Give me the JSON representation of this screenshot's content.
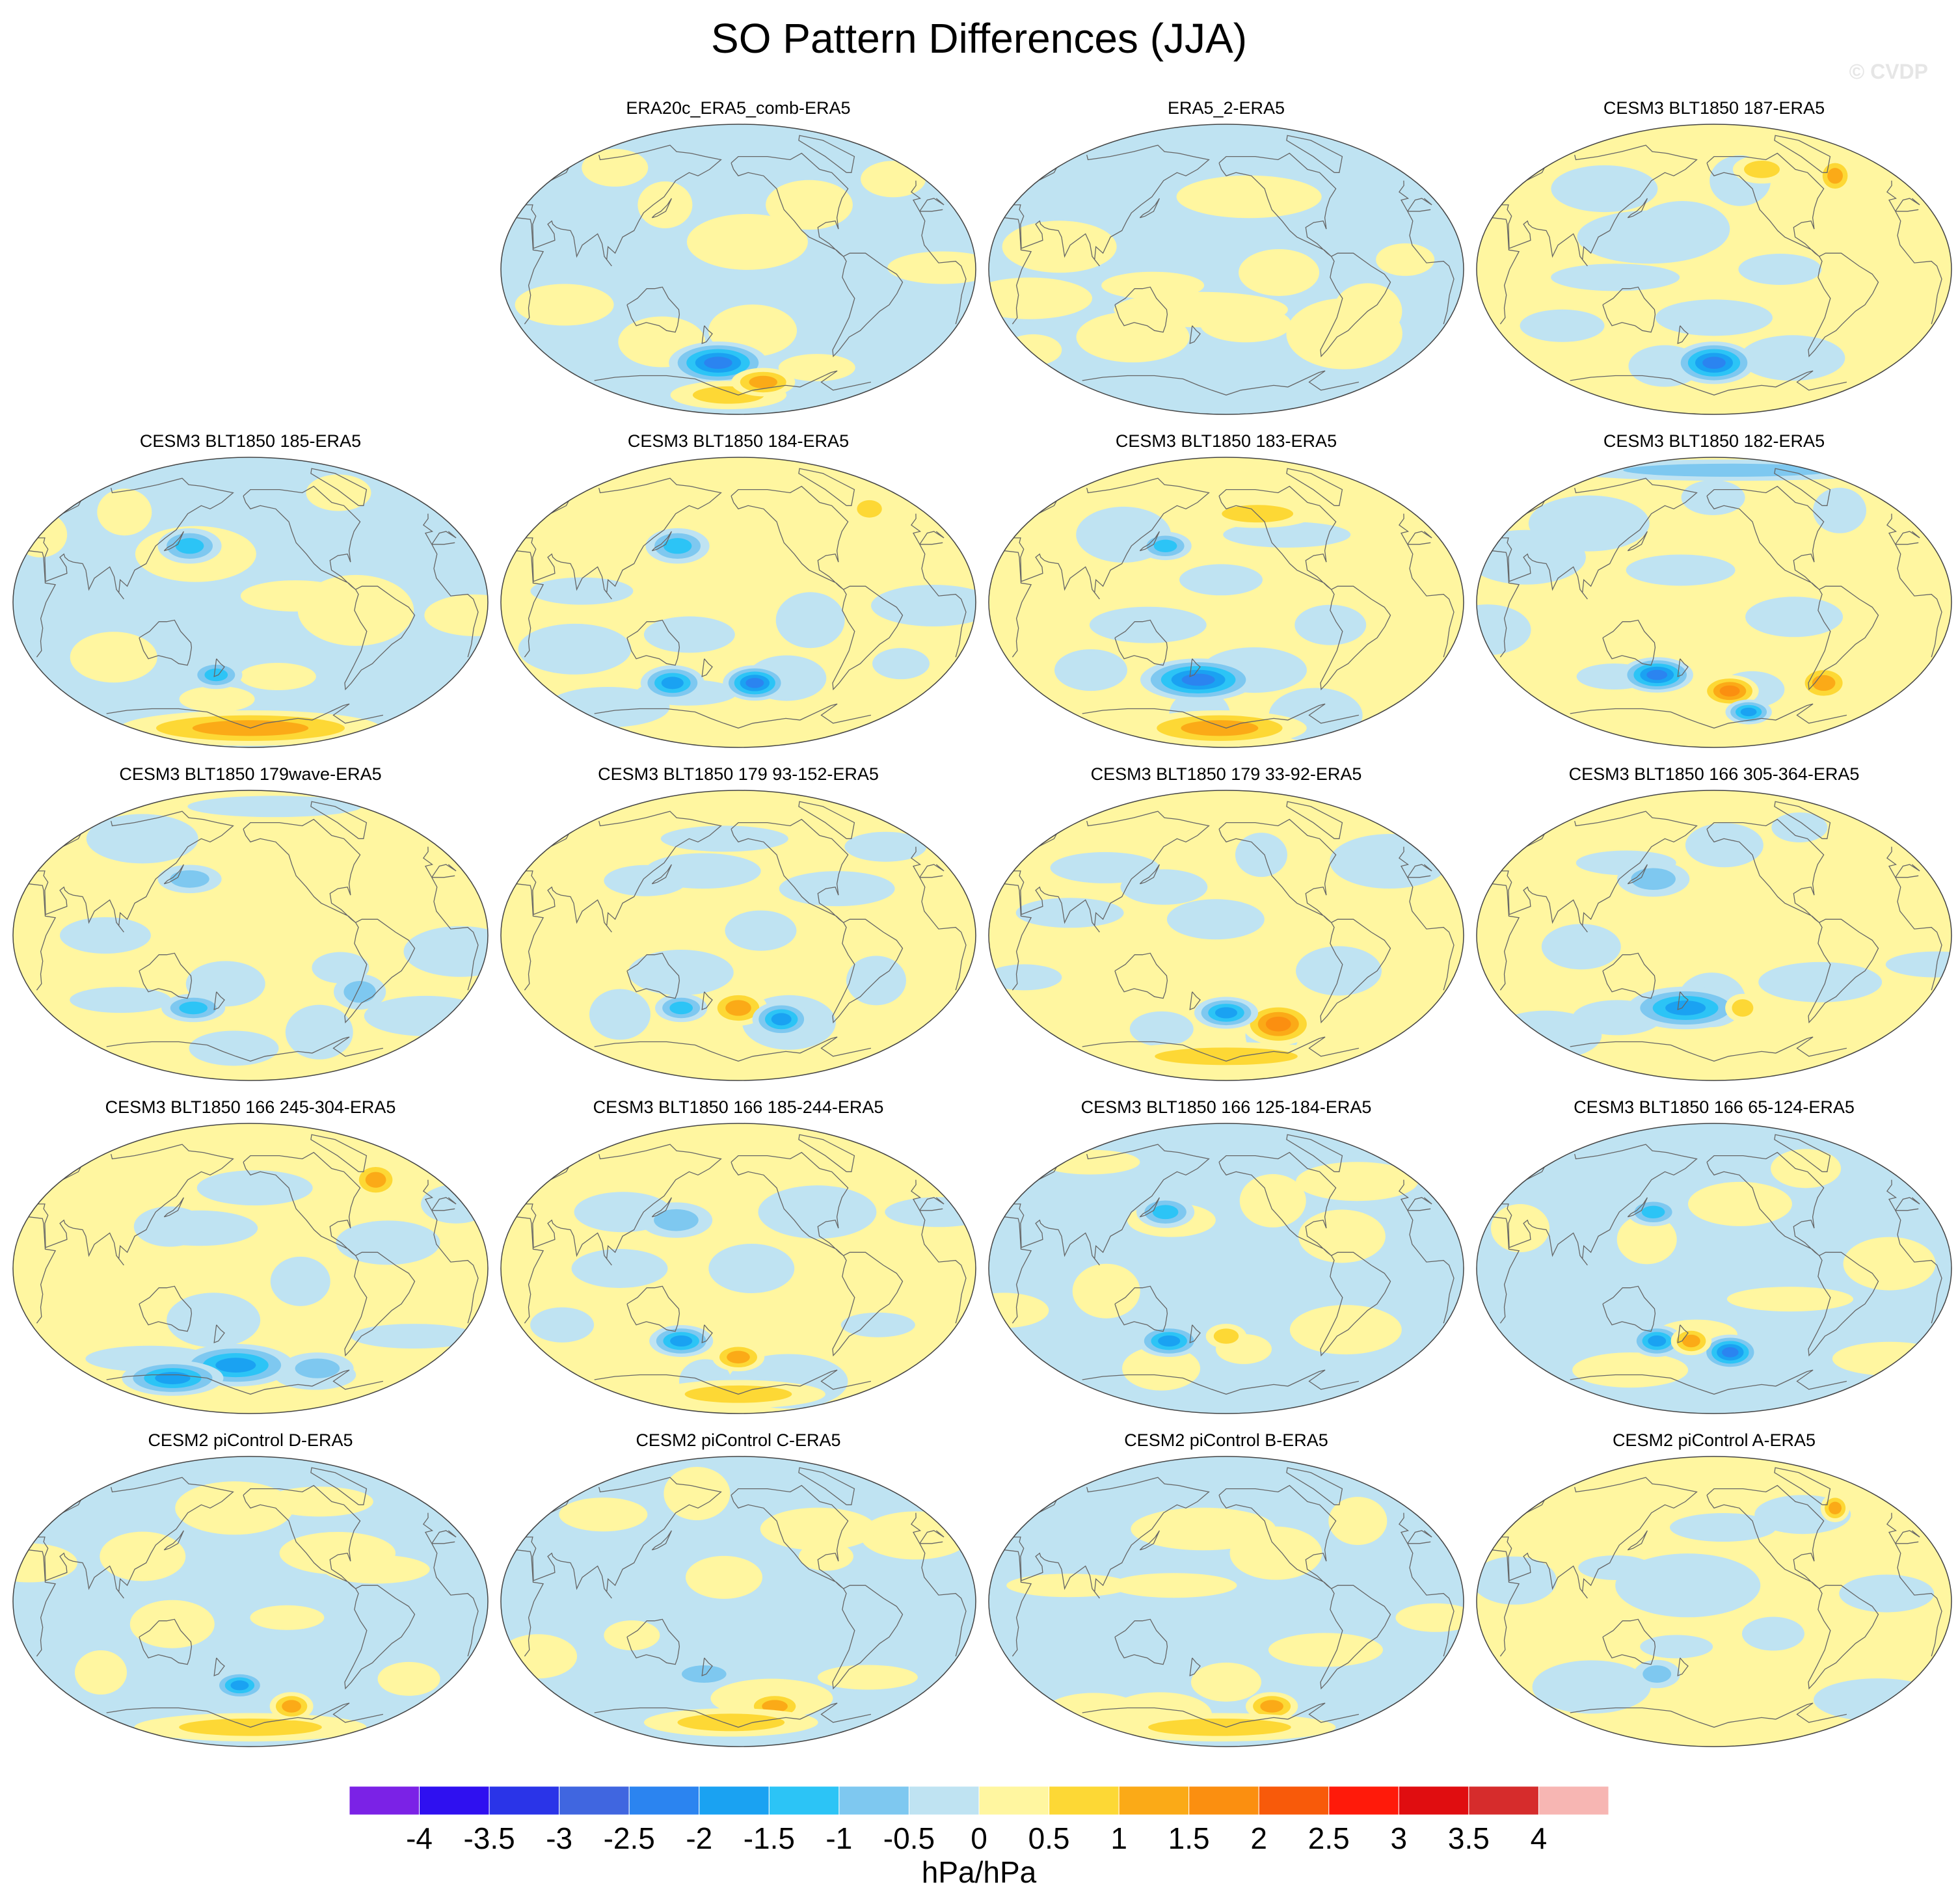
{
  "title": "SO Pattern Differences (JJA)",
  "watermark": "© CVDP",
  "colorbar": {
    "labels": [
      "-4",
      "-3.5",
      "-3",
      "-2.5",
      "-2",
      "-1.5",
      "-1",
      "-0.5",
      "0",
      "0.5",
      "1",
      "1.5",
      "2",
      "2.5",
      "3",
      "3.5",
      "4"
    ],
    "colors": [
      "#7b22e6",
      "#2f10f0",
      "#2a34e8",
      "#4066e0",
      "#2b84f0",
      "#1aa2f2",
      "#2cc4f6",
      "#7ec8f0",
      "#bfe3f2",
      "#fff6a0",
      "#fdd835",
      "#fbaa17",
      "#fb8f10",
      "#f85a0a",
      "#ff1a0a",
      "#e00d10",
      "#d62c2c",
      "#f7b6b3"
    ],
    "units": "hPa/hPa"
  },
  "chart_data": {
    "type": "contour-map-grid",
    "title": "SO Pattern Differences (JJA)",
    "units": "hPa/hPa",
    "contour_levels": [
      -4,
      -3.5,
      -3,
      -2.5,
      -2,
      -1.5,
      -1,
      -0.5,
      0,
      0.5,
      1,
      1.5,
      2,
      2.5,
      3,
      3.5,
      4
    ],
    "panels": [
      {
        "title": "ERA20c_ERA5_comb-ERA5",
        "row": 0,
        "col": 1,
        "base": "blue",
        "features": [
          {
            "lon": 180,
            "lat": -58,
            "value": -2.5,
            "rlon": 34,
            "rlat": 12
          },
          {
            "lon": 185,
            "lat": -78,
            "value": 1.0,
            "rlon": 40,
            "rlat": 8
          },
          {
            "lon": 230,
            "lat": -70,
            "value": 1.5,
            "rlon": 22,
            "rlat": 8
          },
          {
            "lon": 260,
            "lat": 40,
            "value": 0.5,
            "rlon": 30,
            "rlat": 14
          }
        ]
      },
      {
        "title": "ERA5_2-ERA5",
        "row": 0,
        "col": 2,
        "base": "blue",
        "features": [
          {
            "lon": 220,
            "lat": 45,
            "value": 0.5,
            "rlon": 50,
            "rlat": 12
          },
          {
            "lon": 300,
            "lat": -40,
            "value": 0.5,
            "rlon": 40,
            "rlat": 20
          },
          {
            "lon": 180,
            "lat": -25,
            "value": 0.5,
            "rlon": 60,
            "rlat": 10
          }
        ]
      },
      {
        "title": "CESM3 BLT1850 187-ERA5",
        "row": 0,
        "col": 3,
        "base": "yellow",
        "features": [
          {
            "lon": 200,
            "lat": -58,
            "value": -2.5,
            "rlon": 28,
            "rlat": 12
          },
          {
            "lon": 150,
            "lat": 20,
            "value": -0.5,
            "rlon": 50,
            "rlat": 15
          },
          {
            "lon": 250,
            "lat": 62,
            "value": 1.0,
            "rlon": 20,
            "rlat": 8
          },
          {
            "lon": 320,
            "lat": 58,
            "value": 1.5,
            "rlon": 12,
            "rlat": 10
          }
        ]
      },
      {
        "title": "CESM3 BLT1850 185-ERA5",
        "row": 1,
        "col": 0,
        "base": "blue",
        "features": [
          {
            "lon": 150,
            "lat": 35,
            "value": -1.5,
            "rlon": 22,
            "rlat": 10
          },
          {
            "lon": 170,
            "lat": -45,
            "value": -1.5,
            "rlon": 18,
            "rlat": 8
          },
          {
            "lon": 200,
            "lat": -78,
            "value": 1.5,
            "rlon": 90,
            "rlat": 10
          },
          {
            "lon": 280,
            "lat": -5,
            "value": 0.5,
            "rlon": 40,
            "rlat": 20
          }
        ]
      },
      {
        "title": "CESM3 BLT1850 184-ERA5",
        "row": 1,
        "col": 1,
        "base": "yellow",
        "features": [
          {
            "lon": 150,
            "lat": 35,
            "value": -1.5,
            "rlon": 22,
            "rlat": 10
          },
          {
            "lon": 140,
            "lat": -50,
            "value": -2.0,
            "rlon": 22,
            "rlat": 10
          },
          {
            "lon": 215,
            "lat": -50,
            "value": -2.5,
            "rlon": 22,
            "rlat": 10
          },
          {
            "lon": 330,
            "lat": 58,
            "value": 1.0,
            "rlon": 14,
            "rlat": 8
          }
        ]
      },
      {
        "title": "CESM3 BLT1850 183-ERA5",
        "row": 1,
        "col": 2,
        "base": "yellow",
        "features": [
          {
            "lon": 175,
            "lat": -48,
            "value": -2.5,
            "rlon": 40,
            "rlat": 12
          },
          {
            "lon": 150,
            "lat": 35,
            "value": -1.5,
            "rlon": 18,
            "rlat": 8
          },
          {
            "lon": 190,
            "lat": -78,
            "value": 1.5,
            "rlon": 60,
            "rlat": 10
          },
          {
            "lon": 230,
            "lat": 55,
            "value": 1.0,
            "rlon": 40,
            "rlat": 8
          }
        ]
      },
      {
        "title": "CESM3 BLT1850 182-ERA5",
        "row": 1,
        "col": 3,
        "base": "yellow",
        "features": [
          {
            "lon": 150,
            "lat": -45,
            "value": -2.5,
            "rlon": 25,
            "rlat": 10
          },
          {
            "lon": 215,
            "lat": -55,
            "value": 2.0,
            "rlon": 20,
            "rlat": 9
          },
          {
            "lon": 300,
            "lat": -50,
            "value": 1.5,
            "rlon": 18,
            "rlat": 10
          },
          {
            "lon": 240,
            "lat": -68,
            "value": -2.0,
            "rlon": 16,
            "rlat": 7
          },
          {
            "lon": 230,
            "lat": 82,
            "value": -1.0,
            "rlon": 120,
            "rlat": 6
          }
        ]
      },
      {
        "title": "CESM3 BLT1850 179wave-ERA5",
        "row": 2,
        "col": 0,
        "base": "yellow",
        "features": [
          {
            "lon": 150,
            "lat": 35,
            "value": -1.0,
            "rlon": 22,
            "rlat": 8
          },
          {
            "lon": 150,
            "lat": -45,
            "value": -1.5,
            "rlon": 22,
            "rlat": 8
          },
          {
            "lon": 290,
            "lat": -35,
            "value": -1.0,
            "rlon": 18,
            "rlat": 10
          },
          {
            "lon": 240,
            "lat": 80,
            "value": -0.5,
            "rlon": 60,
            "rlat": 6
          }
        ]
      },
      {
        "title": "CESM3 BLT1850 179 93-152-ERA5",
        "row": 2,
        "col": 1,
        "base": "yellow",
        "features": [
          {
            "lon": 200,
            "lat": -45,
            "value": 1.5,
            "rlon": 20,
            "rlat": 10
          },
          {
            "lon": 240,
            "lat": -52,
            "value": -2.0,
            "rlon": 20,
            "rlat": 10
          },
          {
            "lon": 150,
            "lat": -45,
            "value": -1.5,
            "rlon": 18,
            "rlat": 8
          },
          {
            "lon": 170,
            "lat": 40,
            "value": -0.5,
            "rlon": 40,
            "rlat": 10
          }
        ]
      },
      {
        "title": "CESM3 BLT1850 179 33-92-ERA5",
        "row": 2,
        "col": 2,
        "base": "yellow",
        "features": [
          {
            "lon": 250,
            "lat": -55,
            "value": 2.0,
            "rlon": 25,
            "rlat": 12
          },
          {
            "lon": 200,
            "lat": -48,
            "value": -2.0,
            "rlon": 22,
            "rlat": 9
          },
          {
            "lon": 200,
            "lat": -75,
            "value": 1.0,
            "rlon": 80,
            "rlat": 8
          },
          {
            "lon": 150,
            "lat": 30,
            "value": -0.5,
            "rlon": 30,
            "rlat": 10
          }
        ]
      },
      {
        "title": "CESM3 BLT1850 166 305-364-ERA5",
        "row": 2,
        "col": 3,
        "base": "yellow",
        "features": [
          {
            "lon": 175,
            "lat": -45,
            "value": -2.0,
            "rlon": 40,
            "rlat": 12
          },
          {
            "lon": 150,
            "lat": 35,
            "value": -1.0,
            "rlon": 25,
            "rlat": 10
          },
          {
            "lon": 225,
            "lat": -45,
            "value": 1.0,
            "rlon": 12,
            "rlat": 8
          }
        ]
      },
      {
        "title": "CESM3 BLT1850 166 245-304-ERA5",
        "row": 3,
        "col": 0,
        "base": "yellow",
        "features": [
          {
            "lon": 185,
            "lat": -60,
            "value": -2.0,
            "rlon": 40,
            "rlat": 12
          },
          {
            "lon": 110,
            "lat": -68,
            "value": -2.0,
            "rlon": 35,
            "rlat": 10
          },
          {
            "lon": 270,
            "lat": -62,
            "value": -1.0,
            "rlon": 25,
            "rlat": 9
          },
          {
            "lon": 320,
            "lat": 55,
            "value": 1.5,
            "rlon": 16,
            "rlat": 10
          },
          {
            "lon": 160,
            "lat": 25,
            "value": -0.5,
            "rlon": 40,
            "rlat": 10
          }
        ]
      },
      {
        "title": "CESM3 BLT1850 166 185-244-ERA5",
        "row": 3,
        "col": 1,
        "base": "yellow",
        "features": [
          {
            "lon": 150,
            "lat": -45,
            "value": -2.0,
            "rlon": 22,
            "rlat": 9
          },
          {
            "lon": 200,
            "lat": -55,
            "value": 1.5,
            "rlon": 18,
            "rlat": 8
          },
          {
            "lon": 200,
            "lat": -78,
            "value": 1.0,
            "rlon": 60,
            "rlat": 8
          },
          {
            "lon": 150,
            "lat": 30,
            "value": -1.0,
            "rlon": 25,
            "rlat": 10
          }
        ]
      },
      {
        "title": "CESM3 BLT1850 166 125-184-ERA5",
        "row": 3,
        "col": 2,
        "base": "blue",
        "features": [
          {
            "lon": 150,
            "lat": -45,
            "value": -2.0,
            "rlon": 22,
            "rlat": 9
          },
          {
            "lon": 150,
            "lat": 35,
            "value": -1.5,
            "rlon": 20,
            "rlat": 9
          },
          {
            "lon": 200,
            "lat": -42,
            "value": 1.0,
            "rlon": 14,
            "rlat": 7
          },
          {
            "lon": 290,
            "lat": 20,
            "value": 0.5,
            "rlon": 30,
            "rlat": 15
          }
        ]
      },
      {
        "title": "CESM3 BLT1850 166 65-124-ERA5",
        "row": 3,
        "col": 3,
        "base": "blue",
        "features": [
          {
            "lon": 215,
            "lat": -52,
            "value": -2.5,
            "rlon": 20,
            "rlat": 10
          },
          {
            "lon": 150,
            "lat": -45,
            "value": -2.0,
            "rlon": 18,
            "rlat": 9
          },
          {
            "lon": 180,
            "lat": -45,
            "value": 1.5,
            "rlon": 14,
            "rlat": 8
          },
          {
            "lon": 150,
            "lat": 35,
            "value": -1.5,
            "rlon": 18,
            "rlat": 8
          }
        ]
      },
      {
        "title": "CESM2 piControl D-ERA5",
        "row": 4,
        "col": 0,
        "base": "blue",
        "features": [
          {
            "lon": 190,
            "lat": -52,
            "value": -2.0,
            "rlon": 18,
            "rlat": 8
          },
          {
            "lon": 200,
            "lat": -78,
            "value": 1.0,
            "rlon": 80,
            "rlat": 8
          },
          {
            "lon": 245,
            "lat": -65,
            "value": 1.5,
            "rlon": 15,
            "rlat": 8
          },
          {
            "lon": 270,
            "lat": 30,
            "value": 0.5,
            "rlon": 40,
            "rlat": 12
          }
        ]
      },
      {
        "title": "CESM2 piControl C-ERA5",
        "row": 4,
        "col": 1,
        "base": "blue",
        "features": [
          {
            "lon": 240,
            "lat": -65,
            "value": 1.5,
            "rlon": 20,
            "rlat": 8
          },
          {
            "lon": 190,
            "lat": -75,
            "value": 1.0,
            "rlon": 60,
            "rlat": 8
          },
          {
            "lon": 170,
            "lat": -45,
            "value": -1.0,
            "rlon": 25,
            "rlat": 8
          },
          {
            "lon": 270,
            "lat": 45,
            "value": 0.5,
            "rlon": 40,
            "rlat": 12
          }
        ]
      },
      {
        "title": "CESM2 piControl B-ERA5",
        "row": 4,
        "col": 2,
        "base": "blue",
        "features": [
          {
            "lon": 250,
            "lat": -65,
            "value": 1.5,
            "rlon": 18,
            "rlat": 8
          },
          {
            "lon": 190,
            "lat": -78,
            "value": 1.0,
            "rlon": 80,
            "rlat": 8
          },
          {
            "lon": 180,
            "lat": 45,
            "value": 0.5,
            "rlon": 50,
            "rlat": 12
          }
        ]
      },
      {
        "title": "CESM2 piControl A-ERA5",
        "row": 4,
        "col": 3,
        "base": "yellow",
        "features": [
          {
            "lon": 150,
            "lat": -45,
            "value": -1.0,
            "rlon": 16,
            "rlat": 8
          },
          {
            "lon": 320,
            "lat": 58,
            "value": 1.5,
            "rlon": 10,
            "rlat": 8
          },
          {
            "lon": 200,
            "lat": -55,
            "value": 0.5,
            "rlon": 20,
            "rlat": 8
          },
          {
            "lon": 180,
            "lat": 10,
            "value": -0.5,
            "rlon": 50,
            "rlat": 18
          }
        ]
      }
    ]
  }
}
